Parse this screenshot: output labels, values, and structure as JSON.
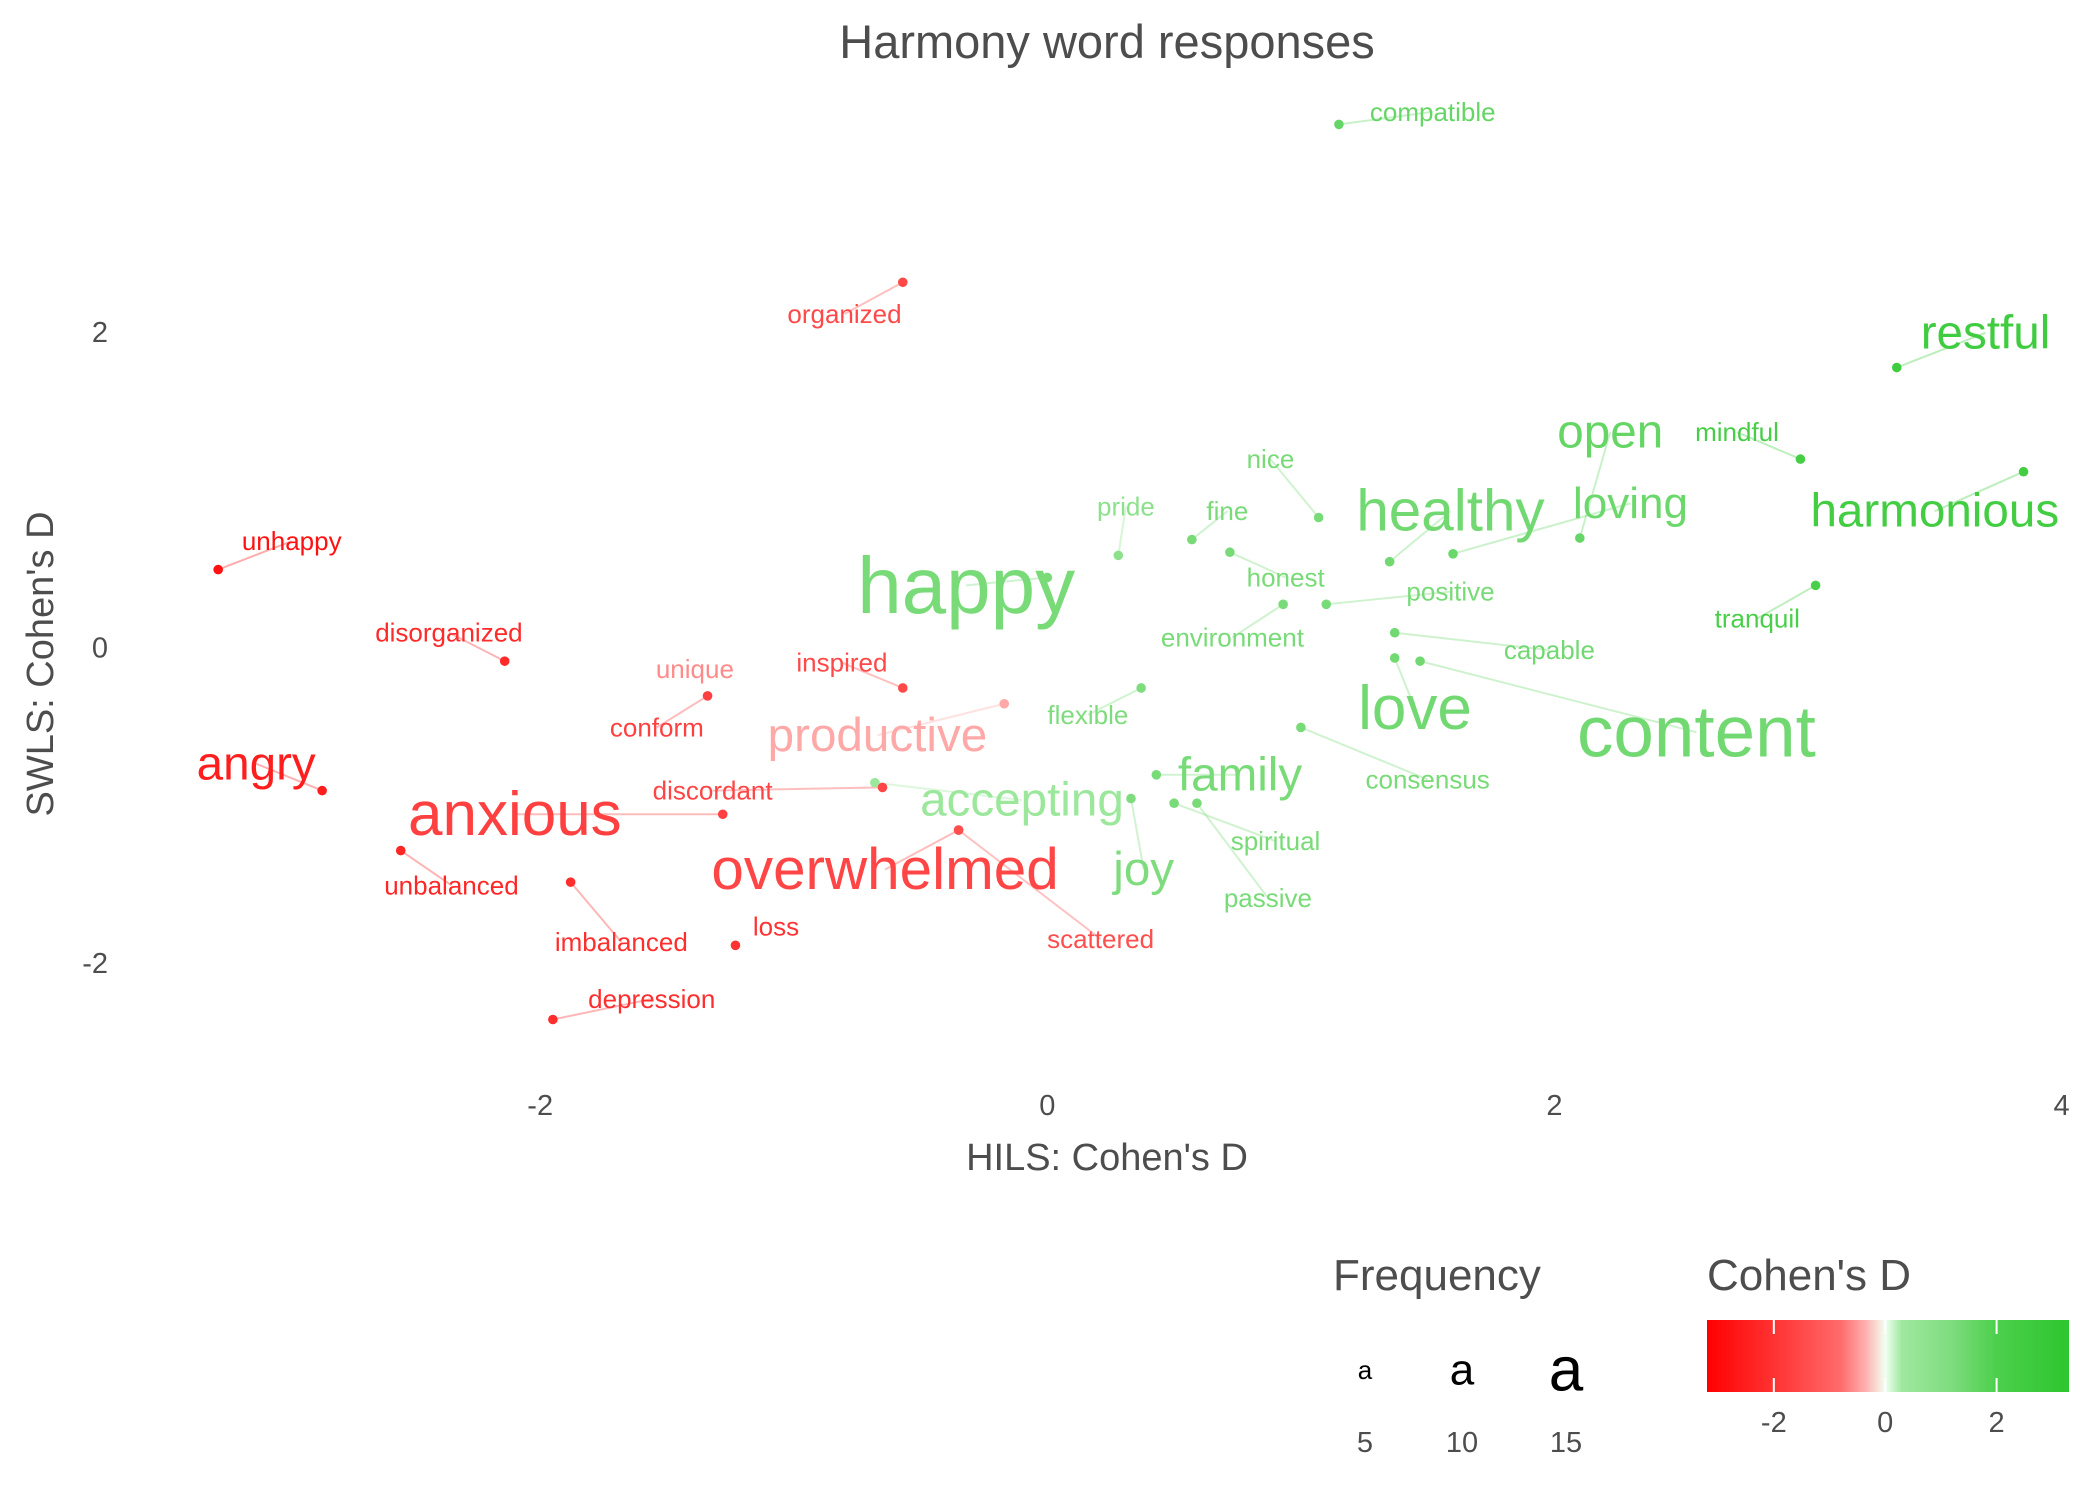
{
  "chart_data": {
    "type": "scatter",
    "title": "Harmony word responses",
    "xlabel": "HILS: Cohen's D",
    "ylabel": "SWLS: Cohen's D",
    "xlim": [
      -4.02,
      4.12
    ],
    "ylim": [
      -2.86,
      3.5
    ],
    "xticks": [
      -2,
      0,
      2,
      4
    ],
    "yticks": [
      -2,
      0,
      2
    ],
    "grid": false,
    "points": [
      {
        "word": "compatible",
        "x": 1.15,
        "y": 3.32,
        "d": 1.6,
        "freq": 5,
        "lx": 1.52,
        "ly": 3.4
      },
      {
        "word": "organized",
        "x": -0.57,
        "y": 2.32,
        "d": -1.5,
        "freq": 5,
        "lx": -0.8,
        "ly": 2.12
      },
      {
        "word": "restful",
        "x": 3.35,
        "y": 1.78,
        "d": 2.5,
        "freq": 11,
        "lx": 3.7,
        "ly": 2.0
      },
      {
        "word": "mindful",
        "x": 2.97,
        "y": 1.2,
        "d": 2.2,
        "freq": 5,
        "lx": 2.72,
        "ly": 1.37
      },
      {
        "word": "open",
        "x": 2.1,
        "y": 0.7,
        "d": 1.6,
        "freq": 11,
        "lx": 2.22,
        "ly": 1.37
      },
      {
        "word": "harmonious",
        "x": 3.85,
        "y": 1.12,
        "d": 2.4,
        "freq": 11,
        "lx": 3.5,
        "ly": 0.87
      },
      {
        "word": "nice",
        "x": 1.07,
        "y": 0.83,
        "d": 1.3,
        "freq": 5,
        "lx": 0.88,
        "ly": 1.2
      },
      {
        "word": "pride",
        "x": 0.28,
        "y": 0.59,
        "d": 0.8,
        "freq": 5,
        "lx": 0.31,
        "ly": 0.9
      },
      {
        "word": "fine",
        "x": 0.57,
        "y": 0.69,
        "d": 1.3,
        "freq": 5,
        "lx": 0.71,
        "ly": 0.87
      },
      {
        "word": "healthy",
        "x": 1.35,
        "y": 0.55,
        "d": 1.4,
        "freq": 14,
        "lx": 1.59,
        "ly": 0.87
      },
      {
        "word": "loving",
        "x": 1.6,
        "y": 0.6,
        "d": 1.5,
        "freq": 10,
        "lx": 2.3,
        "ly": 0.92
      },
      {
        "word": "happy",
        "x": 0.0,
        "y": 0.45,
        "d": 1.3,
        "freq": 20,
        "lx": -0.32,
        "ly": 0.4
      },
      {
        "word": "honest",
        "x": 0.72,
        "y": 0.61,
        "d": 1.3,
        "freq": 5,
        "lx": 0.94,
        "ly": 0.45
      },
      {
        "word": "positive",
        "x": 1.1,
        "y": 0.28,
        "d": 1.3,
        "freq": 5,
        "lx": 1.59,
        "ly": 0.36
      },
      {
        "word": "tranquil",
        "x": 3.03,
        "y": 0.4,
        "d": 2.1,
        "freq": 5,
        "lx": 2.8,
        "ly": 0.19
      },
      {
        "word": "environment",
        "x": 0.93,
        "y": 0.28,
        "d": 1.3,
        "freq": 5,
        "lx": 0.73,
        "ly": 0.07
      },
      {
        "word": "capable",
        "x": 1.37,
        "y": 0.1,
        "d": 1.4,
        "freq": 5,
        "lx": 1.98,
        "ly": -0.01
      },
      {
        "word": "unhappy",
        "x": -3.27,
        "y": 0.5,
        "d": -2.8,
        "freq": 5,
        "lx": -2.98,
        "ly": 0.68
      },
      {
        "word": "disorganized",
        "x": -2.14,
        "y": -0.08,
        "d": -2.2,
        "freq": 5,
        "lx": -2.36,
        "ly": 0.1
      },
      {
        "word": "unique",
        "x": -1.34,
        "y": -0.3,
        "d": -0.6,
        "freq": 5,
        "lx": -1.39,
        "ly": -0.13
      },
      {
        "word": "inspired",
        "x": -0.57,
        "y": -0.25,
        "d": -1.5,
        "freq": 5,
        "lx": -0.81,
        "ly": -0.09
      },
      {
        "word": "content",
        "x": 1.47,
        "y": -0.08,
        "d": 1.4,
        "freq": 18,
        "lx": 2.56,
        "ly": -0.53
      },
      {
        "word": "love",
        "x": 1.37,
        "y": -0.06,
        "d": 1.4,
        "freq": 15,
        "lx": 1.45,
        "ly": -0.38
      },
      {
        "word": "flexible",
        "x": 0.37,
        "y": -0.25,
        "d": 1.2,
        "freq": 5,
        "lx": 0.16,
        "ly": -0.42
      },
      {
        "word": "conform",
        "x": -1.34,
        "y": -0.3,
        "d": -1.7,
        "freq": 5,
        "lx": -1.54,
        "ly": -0.5
      },
      {
        "word": "productive",
        "x": -0.17,
        "y": -0.35,
        "d": -0.4,
        "freq": 11,
        "lx": -0.67,
        "ly": -0.55
      },
      {
        "word": "consensus",
        "x": 1.0,
        "y": -0.5,
        "d": 1.3,
        "freq": 5,
        "lx": 1.5,
        "ly": -0.83
      },
      {
        "word": "angry",
        "x": -2.86,
        "y": -0.9,
        "d": -2.5,
        "freq": 11,
        "lx": -3.12,
        "ly": -0.73
      },
      {
        "word": "family",
        "x": 0.43,
        "y": -0.8,
        "d": 1.3,
        "freq": 11,
        "lx": 0.76,
        "ly": -0.8
      },
      {
        "word": "accepting",
        "x": -0.68,
        "y": -0.85,
        "d": 0.4,
        "freq": 11,
        "lx": -0.1,
        "ly": -0.96
      },
      {
        "word": "discordant",
        "x": -0.65,
        "y": -0.88,
        "d": -1.6,
        "freq": 5,
        "lx": -1.32,
        "ly": -0.9
      },
      {
        "word": "anxious",
        "x": -1.28,
        "y": -1.05,
        "d": -1.7,
        "freq": 15,
        "lx": -2.1,
        "ly": -1.05
      },
      {
        "word": "spiritual",
        "x": 0.5,
        "y": -0.98,
        "d": 1.3,
        "freq": 5,
        "lx": 0.9,
        "ly": -1.22
      },
      {
        "word": "joy",
        "x": 0.33,
        "y": -0.95,
        "d": 1.2,
        "freq": 11,
        "lx": 0.38,
        "ly": -1.4
      },
      {
        "word": "overwhelmed",
        "x": -0.35,
        "y": -1.15,
        "d": -1.6,
        "freq": 14,
        "lx": -0.64,
        "ly": -1.4
      },
      {
        "word": "passive",
        "x": 0.59,
        "y": -0.98,
        "d": 1.3,
        "freq": 5,
        "lx": 0.87,
        "ly": -1.58
      },
      {
        "word": "unbalanced",
        "x": -2.55,
        "y": -1.28,
        "d": -2.3,
        "freq": 5,
        "lx": -2.35,
        "ly": -1.5
      },
      {
        "word": "scattered",
        "x": -0.35,
        "y": -1.15,
        "d": -1.4,
        "freq": 5,
        "lx": 0.21,
        "ly": -1.84
      },
      {
        "word": "imbalanced",
        "x": -1.88,
        "y": -1.48,
        "d": -2.1,
        "freq": 5,
        "lx": -1.68,
        "ly": -1.86
      },
      {
        "word": "loss",
        "x": -1.23,
        "y": -1.88,
        "d": -2.0,
        "freq": 5,
        "lx": -1.07,
        "ly": -1.76
      },
      {
        "word": "depression",
        "x": -1.95,
        "y": -2.35,
        "d": -2.1,
        "freq": 5,
        "lx": -1.56,
        "ly": -2.22
      }
    ],
    "color_scale": {
      "low": "#ff0000",
      "mid": "#ffffff",
      "high": "#2ec52e",
      "domain": [
        -3.2,
        3.3
      ],
      "stops": [
        {
          "v": -3.2,
          "c": "#ff0000"
        },
        {
          "v": -1.8,
          "c": "#ff3b3b"
        },
        {
          "v": -0.8,
          "c": "#ff6b6b"
        },
        {
          "v": -0.35,
          "c": "#ffb0b0"
        },
        {
          "v": 0.0,
          "c": "#f2fff2"
        },
        {
          "v": 0.3,
          "c": "#9fe89f"
        },
        {
          "v": 1.2,
          "c": "#7edc7e"
        },
        {
          "v": 2.0,
          "c": "#4cd04c"
        },
        {
          "v": 3.3,
          "c": "#2ec52e"
        }
      ]
    },
    "legend": {
      "size": {
        "title": "Frequency",
        "glyph": "a",
        "entries": [
          5,
          10,
          15
        ],
        "labels": [
          "5",
          "10",
          "15"
        ]
      },
      "color": {
        "title": "Cohen's D",
        "ticks": [
          -2,
          0,
          2
        ],
        "labels": [
          "-2",
          "0",
          "2"
        ]
      },
      "position": "bottom-right"
    }
  }
}
